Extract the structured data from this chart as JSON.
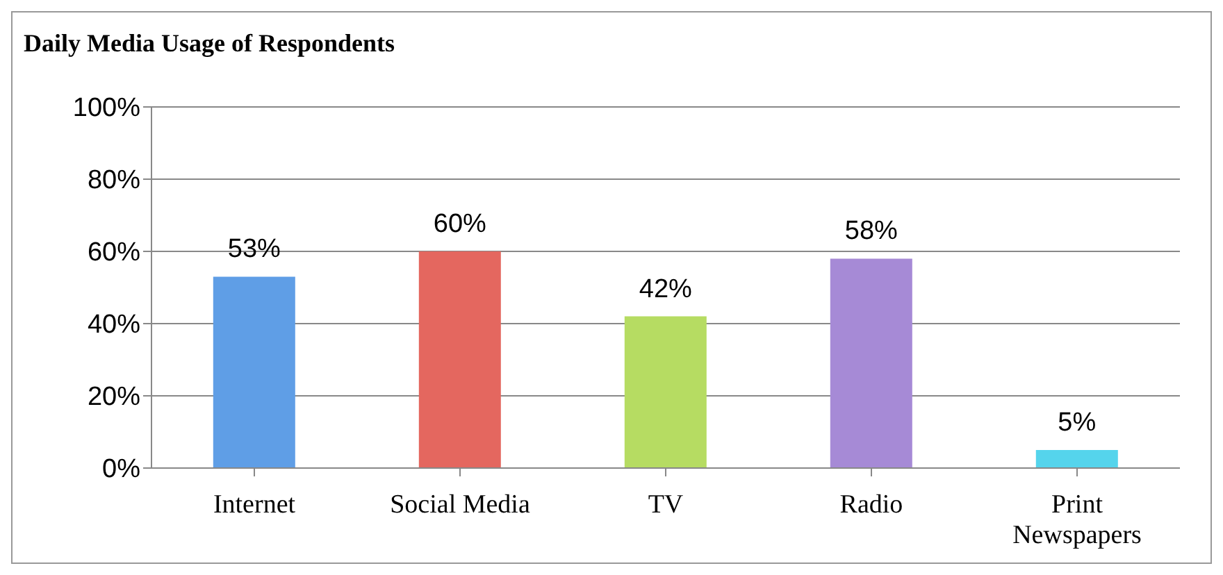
{
  "chart_data": {
    "type": "bar",
    "title": "Daily Media Usage of Respondents",
    "categories": [
      "Internet",
      "Social Media",
      "TV",
      "Radio",
      "Print Newspapers"
    ],
    "values": [
      53,
      60,
      42,
      58,
      5
    ],
    "colors": [
      "#5f9ee6",
      "#e4675f",
      "#b6dc62",
      "#a68ad6",
      "#55d4ec"
    ],
    "value_labels": [
      "53%",
      "60%",
      "42%",
      "58%",
      "5%"
    ],
    "ylim": [
      0,
      100
    ],
    "yticks": [
      {
        "value": 0,
        "label": "0%"
      },
      {
        "value": 20,
        "label": "20%"
      },
      {
        "value": 40,
        "label": "40%"
      },
      {
        "value": 60,
        "label": "60%"
      },
      {
        "value": 80,
        "label": "80%"
      },
      {
        "value": 100,
        "label": "100%"
      }
    ],
    "grid": "y"
  }
}
